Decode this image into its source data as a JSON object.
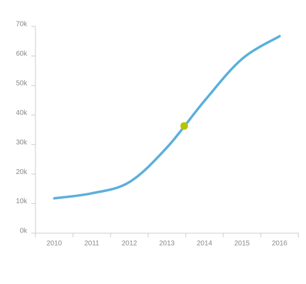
{
  "chart_data": {
    "type": "line",
    "x": [
      2010,
      2011,
      2012,
      2013,
      2014,
      2015,
      2016
    ],
    "series": [
      {
        "color": "#5aafdc",
        "values": [
          11800,
          13500,
          17300,
          29000,
          44800,
          59000,
          66700
        ]
      }
    ],
    "highlight": {
      "x": 2013.46,
      "value": 36300,
      "color": "#b7c400"
    },
    "xlim": [
      2009.5,
      2016.5
    ],
    "xticks": [
      2010,
      2011,
      2012,
      2013,
      2014,
      2015,
      2016
    ],
    "ylim": [
      0,
      70000
    ],
    "yticks": [
      {
        "value": 0,
        "label": "0k"
      },
      {
        "value": 10000,
        "label": "10k"
      },
      {
        "value": 20000,
        "label": "20k"
      },
      {
        "value": 30000,
        "label": "30k"
      },
      {
        "value": 40000,
        "label": "40k"
      },
      {
        "value": 50000,
        "label": "50k"
      },
      {
        "value": 60000,
        "label": "60k"
      },
      {
        "value": 70000,
        "label": "70k"
      }
    ]
  }
}
